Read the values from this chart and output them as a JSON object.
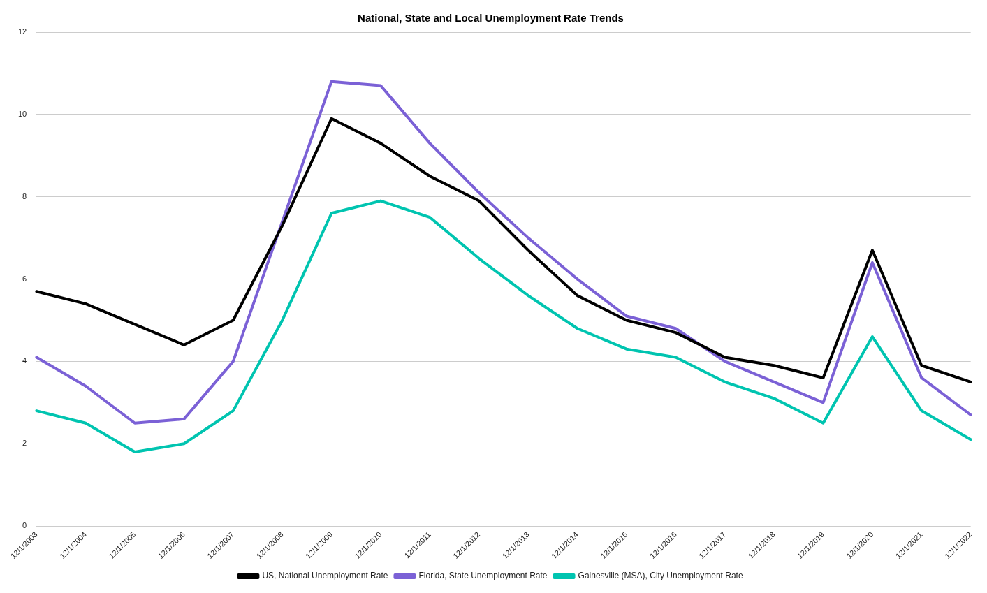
{
  "chart_data": {
    "type": "line",
    "title": "National, State and Local Unemployment Rate Trends",
    "categories": [
      "12/1/2003",
      "12/1/2004",
      "12/1/2005",
      "12/1/2006",
      "12/1/2007",
      "12/1/2008",
      "12/1/2009",
      "12/1/2010",
      "12/1/2011",
      "12/1/2012",
      "12/1/2013",
      "12/1/2014",
      "12/1/2015",
      "12/1/2016",
      "12/1/2017",
      "12/1/2018",
      "12/1/2019",
      "12/1/2020",
      "12/1/2021",
      "12/1/2022"
    ],
    "series": [
      {
        "name": "US, National Unemployment Rate",
        "color": "#000000",
        "values": [
          5.7,
          5.4,
          4.9,
          4.4,
          5.0,
          7.3,
          9.9,
          9.3,
          8.5,
          7.9,
          6.7,
          5.6,
          5.0,
          4.7,
          4.1,
          3.9,
          3.6,
          6.7,
          3.9,
          3.5
        ]
      },
      {
        "name": "Florida, State Unemployment Rate",
        "color": "#7b61d6",
        "values": [
          4.1,
          3.4,
          2.5,
          2.6,
          4.0,
          7.4,
          10.8,
          10.7,
          9.3,
          8.1,
          7.0,
          6.0,
          5.1,
          4.8,
          4.0,
          3.5,
          3.0,
          6.4,
          3.6,
          2.7
        ]
      },
      {
        "name": "Gainesville (MSA), City Unemployment Rate",
        "color": "#00c4b0",
        "values": [
          2.8,
          2.5,
          1.8,
          2.0,
          2.8,
          5.0,
          7.6,
          7.9,
          7.5,
          6.5,
          5.6,
          4.8,
          4.3,
          4.1,
          3.5,
          3.1,
          2.5,
          4.6,
          2.8,
          2.1
        ]
      }
    ],
    "ylim": [
      0,
      12
    ],
    "yticks": [
      0,
      2,
      4,
      6,
      8,
      10,
      12
    ],
    "grid": "y",
    "legend": "bottom",
    "marker": "none",
    "line_style": "solid"
  }
}
